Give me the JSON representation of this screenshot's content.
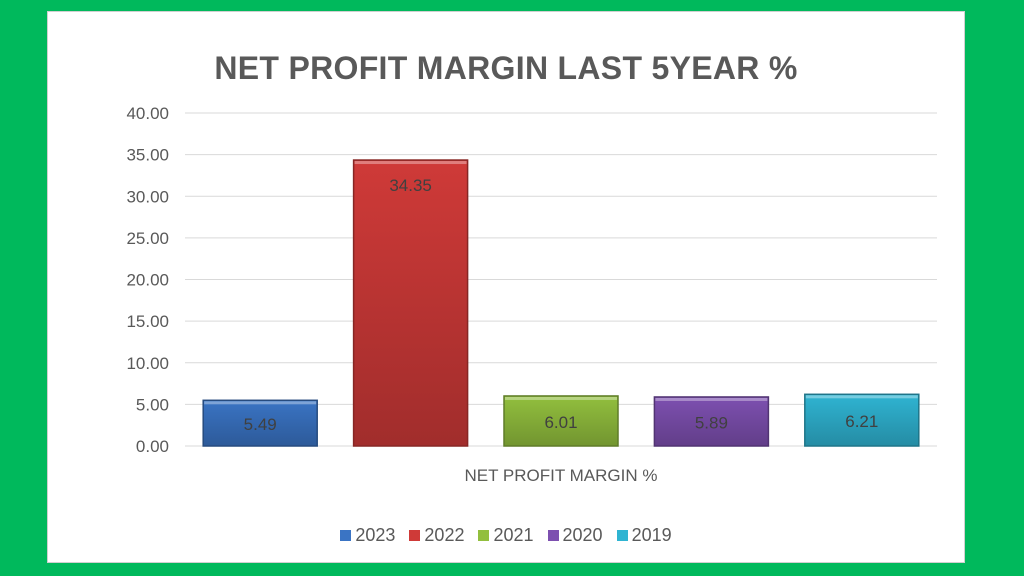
{
  "chart_data": {
    "type": "bar",
    "title": "NET PROFIT MARGIN LAST 5YEAR %",
    "xlabel": "NET PROFIT MARGIN %",
    "ylabel": "",
    "ylim": [
      0,
      40
    ],
    "y_ticks": [
      "0.00",
      "5.00",
      "10.00",
      "15.00",
      "20.00",
      "25.00",
      "30.00",
      "35.00",
      "40.00"
    ],
    "grid": true,
    "legend_position": "bottom",
    "series": [
      {
        "name": "2023",
        "value": 5.49,
        "label": "5.49",
        "color": "#3a74c4"
      },
      {
        "name": "2022",
        "value": 34.35,
        "label": "34.35",
        "color": "#cf3a38"
      },
      {
        "name": "2021",
        "value": 6.01,
        "label": "6.01",
        "color": "#92bf3e"
      },
      {
        "name": "2020",
        "value": 5.89,
        "label": "5.89",
        "color": "#7d50b0"
      },
      {
        "name": "2019",
        "value": 6.21,
        "label": "6.21",
        "color": "#2fb4d2"
      }
    ]
  },
  "colors": {
    "background": "#00b95c",
    "panel": "#ffffff",
    "gridline": "#d9d9d9"
  }
}
